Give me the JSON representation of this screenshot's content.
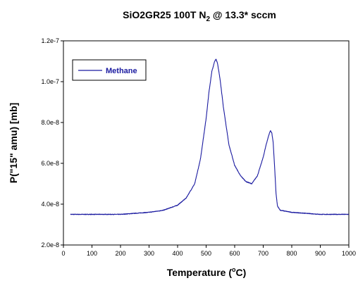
{
  "chart_data": {
    "type": "line",
    "title_prefix": "SiO2GR25 100T N",
    "title_subscript": "2",
    "title_suffix": " @ 13.3* sccm",
    "xlabel_prefix": "Temperature (",
    "xlabel_superscript": "o",
    "xlabel_suffix": "C)",
    "ylabel": "P(\"15\" amu) [mb]",
    "xlim": [
      0,
      1000
    ],
    "ylim": [
      2e-08,
      1.2e-07
    ],
    "x_ticks": [
      0,
      100,
      200,
      300,
      400,
      500,
      600,
      700,
      800,
      900,
      1000
    ],
    "x_tick_labels": [
      "0",
      "100",
      "200",
      "300",
      "400",
      "500",
      "600",
      "700",
      "800",
      "900",
      "1000"
    ],
    "y_ticks": [
      2e-08,
      4e-08,
      6e-08,
      8e-08,
      1e-07,
      1.2e-07
    ],
    "y_tick_labels": [
      "2.0e-8",
      "4.0e-8",
      "6.0e-8",
      "8.0e-8",
      "1.0e-7",
      "1.2e-7"
    ],
    "grid": false,
    "legend_position": "top-left",
    "line_color": "#1a1aa0",
    "series": [
      {
        "name": "Methane",
        "x": [
          25,
          50,
          100,
          150,
          200,
          250,
          300,
          350,
          400,
          430,
          460,
          480,
          500,
          510,
          520,
          530,
          535,
          540,
          550,
          560,
          580,
          600,
          620,
          640,
          660,
          680,
          700,
          710,
          720,
          725,
          730,
          735,
          740,
          745,
          750,
          760,
          780,
          800,
          850,
          900,
          950,
          1000
        ],
        "values": [
          3.5e-08,
          3.5e-08,
          3.5e-08,
          3.5e-08,
          3.5e-08,
          3.55e-08,
          3.6e-08,
          3.7e-08,
          3.95e-08,
          4.3e-08,
          5e-08,
          6.2e-08,
          8.2e-08,
          9.5e-08,
          1.05e-07,
          1.1e-07,
          1.11e-07,
          1.09e-07,
          1e-07,
          8.8e-08,
          6.9e-08,
          5.9e-08,
          5.4e-08,
          5.1e-08,
          5e-08,
          5.4e-08,
          6.3e-08,
          6.9e-08,
          7.4e-08,
          7.6e-08,
          7.5e-08,
          7e-08,
          5.8e-08,
          4.5e-08,
          3.9e-08,
          3.7e-08,
          3.65e-08,
          3.6e-08,
          3.55e-08,
          3.5e-08,
          3.5e-08,
          3.5e-08
        ]
      }
    ]
  }
}
